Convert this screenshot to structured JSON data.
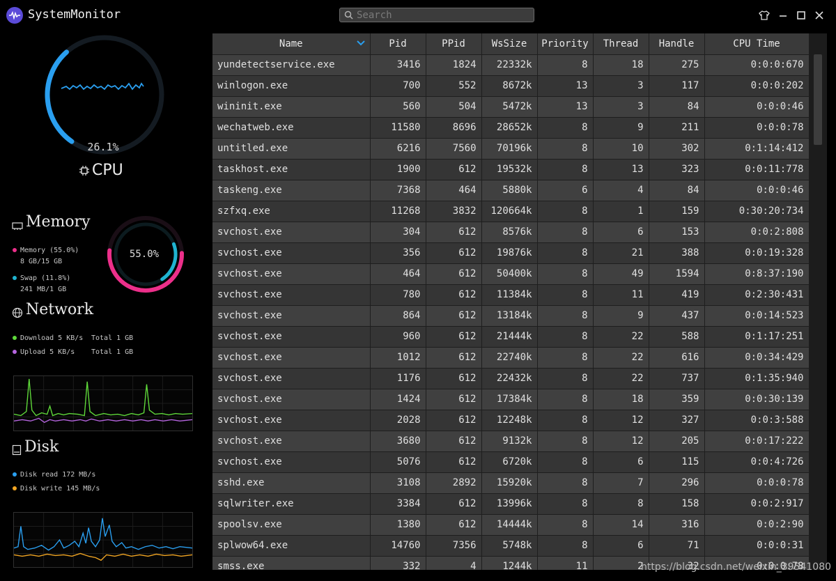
{
  "app": {
    "title": "SystemMonitor",
    "search_placeholder": "Search"
  },
  "window_buttons": [
    "shirt-icon",
    "minimize-icon",
    "maximize-icon",
    "close-icon"
  ],
  "cpu": {
    "percent_label": "26.1%",
    "percent": 26.1,
    "label": "CPU"
  },
  "memory": {
    "title": "Memory",
    "percent_label": "55.0%",
    "memory_line1": "Memory (55.0%)",
    "memory_line2": "8 GB/15 GB",
    "swap_line1": "Swap (11.8%)",
    "swap_line2": "241 MB/1 GB",
    "memory_percent": 55.0,
    "swap_percent": 11.8
  },
  "network": {
    "title": "Network",
    "download": "Download 5 KB/s",
    "download_total": "Total 1 GB",
    "upload": "Upload 5 KB/s",
    "upload_total": "Total 1 GB"
  },
  "disk": {
    "title": "Disk",
    "read": "Disk read 172 MB/s",
    "write": "Disk write 145 MB/s"
  },
  "colors": {
    "cpu": "#2a9ff0",
    "memory": "#ec2f8a",
    "swap": "#1fb3d0",
    "download": "#5fd93a",
    "upload": "#b665e0",
    "disk_read": "#2a9ff0",
    "disk_write": "#f2a623"
  },
  "table": {
    "headers": [
      "Name",
      "Pid",
      "PPid",
      "WsSize",
      "Priority",
      "Thread",
      "Handle",
      "CPU Time"
    ],
    "rows": [
      [
        "yundetectservice.exe",
        "3416",
        "1824",
        "22332k",
        "8",
        "18",
        "275",
        "0:0:0:670"
      ],
      [
        "winlogon.exe",
        "700",
        "552",
        "8672k",
        "13",
        "3",
        "117",
        "0:0:0:202"
      ],
      [
        "wininit.exe",
        "560",
        "504",
        "5472k",
        "13",
        "3",
        "84",
        "0:0:0:46"
      ],
      [
        "wechatweb.exe",
        "11580",
        "8696",
        "28652k",
        "8",
        "9",
        "211",
        "0:0:0:78"
      ],
      [
        "untitled.exe",
        "6216",
        "7560",
        "70196k",
        "8",
        "10",
        "302",
        "0:1:14:412"
      ],
      [
        "taskhost.exe",
        "1900",
        "612",
        "19532k",
        "8",
        "13",
        "323",
        "0:0:11:778"
      ],
      [
        "taskeng.exe",
        "7368",
        "464",
        "5880k",
        "6",
        "4",
        "84",
        "0:0:0:46"
      ],
      [
        "szfxq.exe",
        "11268",
        "3832",
        "120664k",
        "8",
        "1",
        "159",
        "0:30:20:734"
      ],
      [
        "svchost.exe",
        "304",
        "612",
        "8576k",
        "8",
        "6",
        "153",
        "0:0:2:808"
      ],
      [
        "svchost.exe",
        "356",
        "612",
        "19876k",
        "8",
        "21",
        "388",
        "0:0:19:328"
      ],
      [
        "svchost.exe",
        "464",
        "612",
        "50400k",
        "8",
        "49",
        "1594",
        "0:8:37:190"
      ],
      [
        "svchost.exe",
        "780",
        "612",
        "11384k",
        "8",
        "11",
        "419",
        "0:2:30:431"
      ],
      [
        "svchost.exe",
        "864",
        "612",
        "13184k",
        "8",
        "9",
        "437",
        "0:0:14:523"
      ],
      [
        "svchost.exe",
        "960",
        "612",
        "21444k",
        "8",
        "22",
        "588",
        "0:1:17:251"
      ],
      [
        "svchost.exe",
        "1012",
        "612",
        "22740k",
        "8",
        "22",
        "616",
        "0:0:34:429"
      ],
      [
        "svchost.exe",
        "1176",
        "612",
        "22432k",
        "8",
        "22",
        "737",
        "0:1:35:940"
      ],
      [
        "svchost.exe",
        "1424",
        "612",
        "17384k",
        "8",
        "18",
        "359",
        "0:0:30:139"
      ],
      [
        "svchost.exe",
        "2028",
        "612",
        "12248k",
        "8",
        "12",
        "327",
        "0:0:3:588"
      ],
      [
        "svchost.exe",
        "3680",
        "612",
        "9132k",
        "8",
        "12",
        "205",
        "0:0:17:222"
      ],
      [
        "svchost.exe",
        "5076",
        "612",
        "6720k",
        "8",
        "6",
        "115",
        "0:0:4:726"
      ],
      [
        "sshd.exe",
        "3108",
        "2892",
        "15920k",
        "8",
        "7",
        "296",
        "0:0:0:78"
      ],
      [
        "sqlwriter.exe",
        "3384",
        "612",
        "13996k",
        "8",
        "8",
        "158",
        "0:0:2:917"
      ],
      [
        "spoolsv.exe",
        "1380",
        "612",
        "14444k",
        "8",
        "14",
        "316",
        "0:0:2:90"
      ],
      [
        "splwow64.exe",
        "14760",
        "7356",
        "5748k",
        "8",
        "6",
        "71",
        "0:0:0:31"
      ],
      [
        "smss.exe",
        "332",
        "4",
        "1244k",
        "11",
        "2",
        "32",
        "0:0:0:78"
      ]
    ]
  },
  "watermark": "https://blog.csdn.net/weixin_39541080"
}
